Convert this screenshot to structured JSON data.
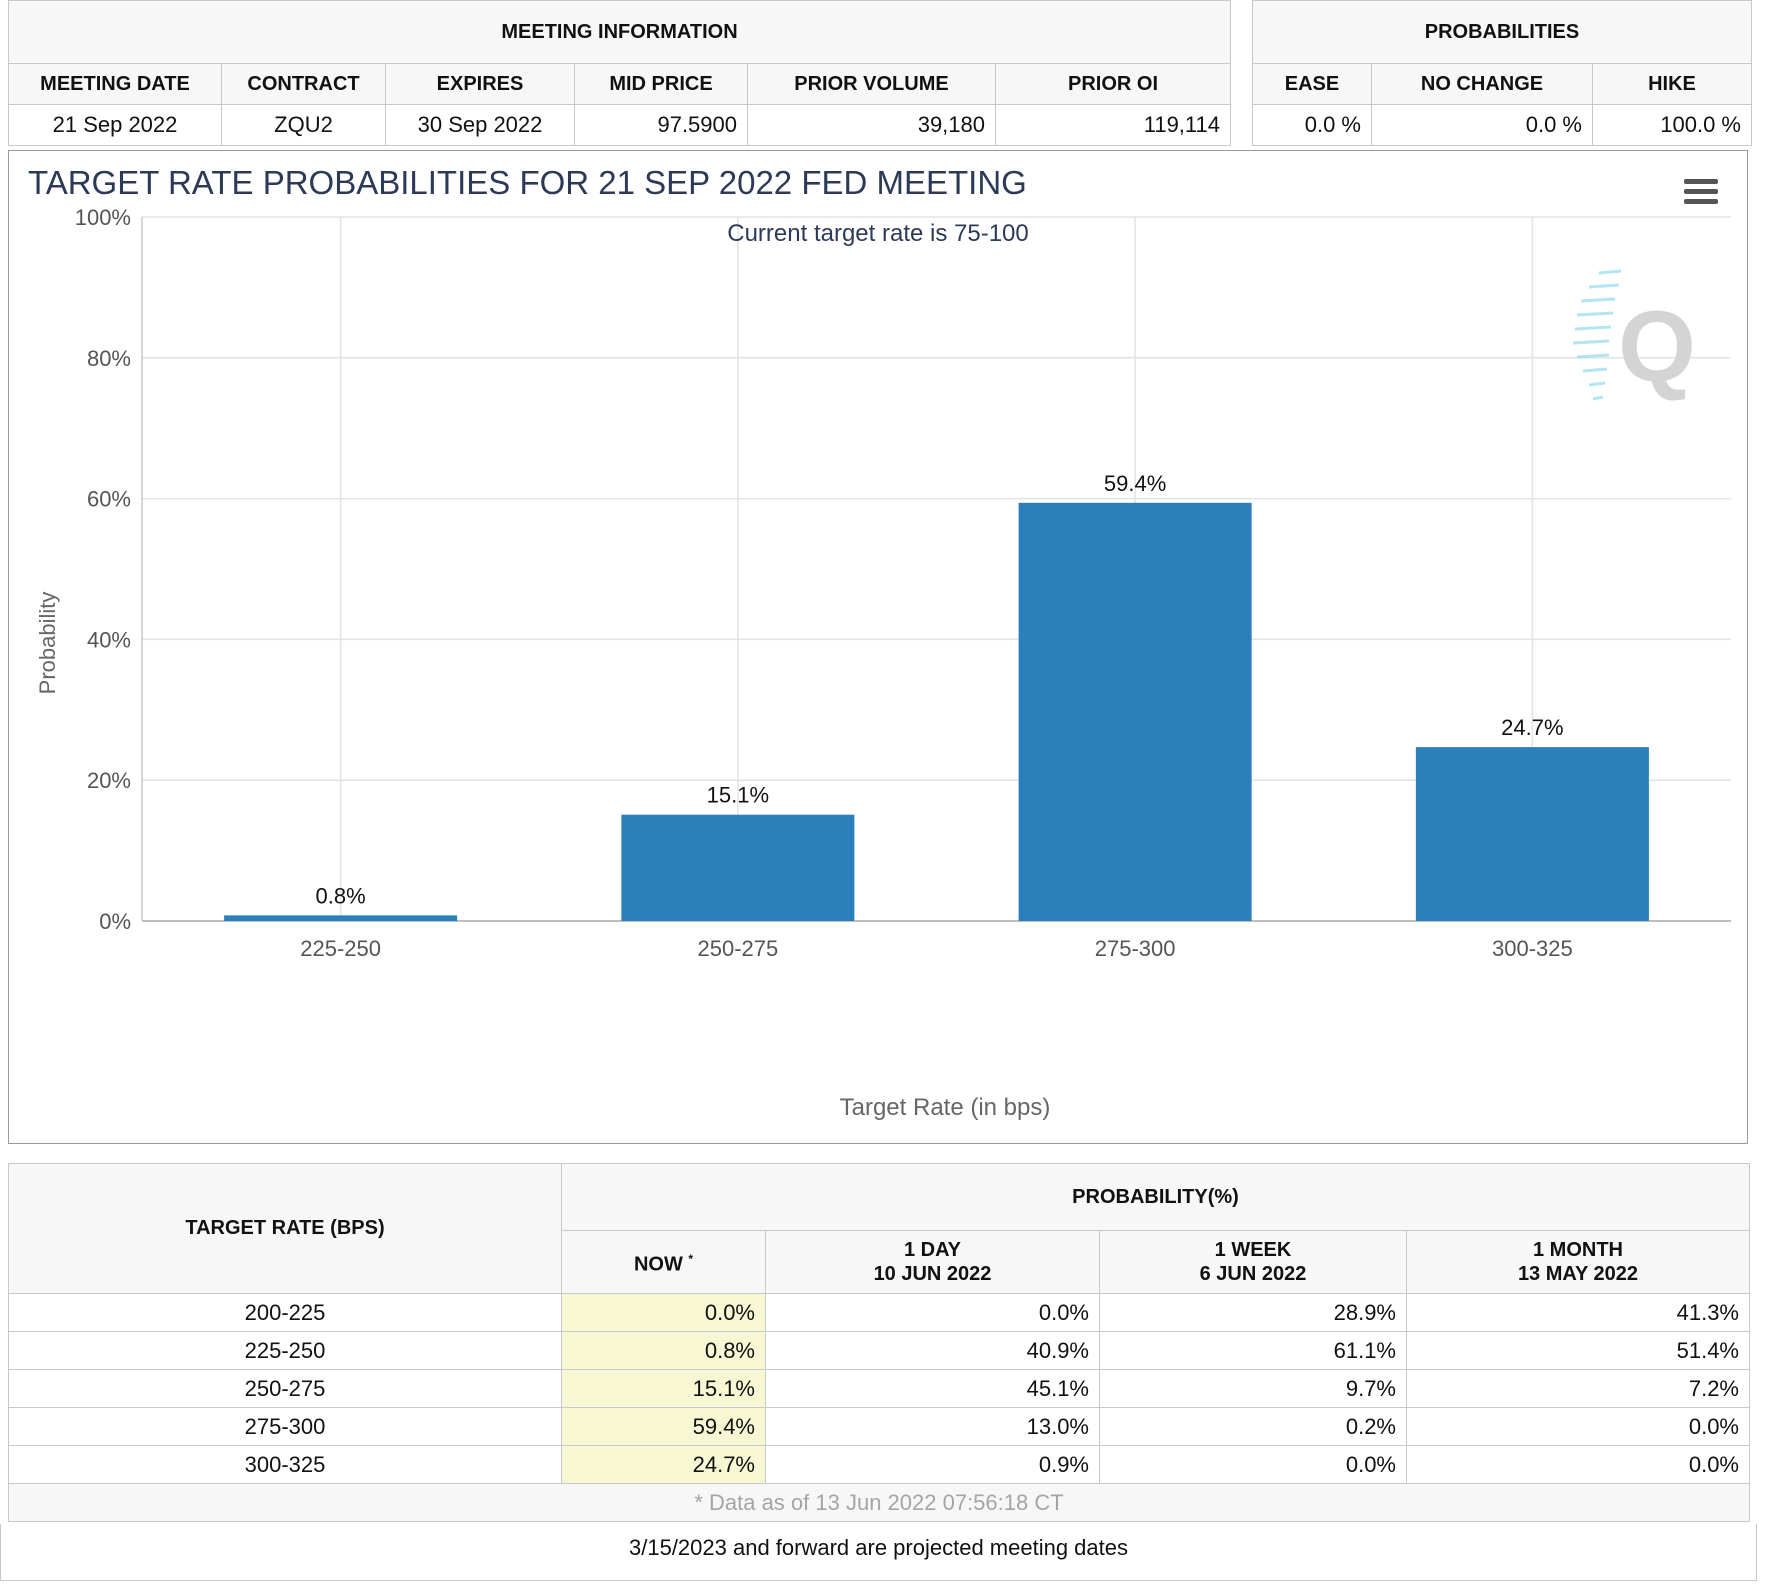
{
  "meeting_info": {
    "group_title": "MEETING INFORMATION",
    "headers": [
      "MEETING DATE",
      "CONTRACT",
      "EXPIRES",
      "MID PRICE",
      "PRIOR VOLUME",
      "PRIOR OI"
    ],
    "values": [
      "21 Sep 2022",
      "ZQU2",
      "30 Sep 2022",
      "97.5900",
      "39,180",
      "119,114"
    ]
  },
  "probabilities": {
    "group_title": "PROBABILITIES",
    "headers": [
      "EASE",
      "NO CHANGE",
      "HIKE"
    ],
    "values": [
      "0.0 %",
      "0.0 %",
      "100.0 %"
    ]
  },
  "chart_data": {
    "type": "bar",
    "title": "TARGET RATE PROBABILITIES FOR 21 SEP 2022 FED MEETING",
    "subtitle": "Current target rate is 75-100",
    "xlabel": "Target Rate (in bps)",
    "ylabel": "Probability",
    "categories": [
      "225-250",
      "250-275",
      "275-300",
      "300-325"
    ],
    "values": [
      0.8,
      15.1,
      59.4,
      24.7
    ],
    "data_labels": [
      "0.8%",
      "15.1%",
      "59.4%",
      "24.7%"
    ],
    "ylim": [
      0,
      100
    ],
    "yticks": [
      "0%",
      "20%",
      "40%",
      "60%",
      "80%",
      "100%"
    ],
    "bar_color": "#2b7fbb",
    "grid": true,
    "watermark": "Q",
    "menu_icon": "hamburger-menu-icon"
  },
  "rates_table": {
    "col1_header": "TARGET RATE (BPS)",
    "prob_header": "PROBABILITY(%)",
    "sub_headers": [
      {
        "line1": "NOW",
        "line2": "",
        "sup": "*"
      },
      {
        "line1": "1 DAY",
        "line2": "10 JUN 2022",
        "sup": ""
      },
      {
        "line1": "1 WEEK",
        "line2": "6 JUN 2022",
        "sup": ""
      },
      {
        "line1": "1 MONTH",
        "line2": "13 MAY 2022",
        "sup": ""
      }
    ],
    "rows": [
      {
        "rate": "200-225",
        "now": "0.0%",
        "day": "0.0%",
        "week": "28.9%",
        "month": "41.3%"
      },
      {
        "rate": "225-250",
        "now": "0.8%",
        "day": "40.9%",
        "week": "61.1%",
        "month": "51.4%"
      },
      {
        "rate": "250-275",
        "now": "15.1%",
        "day": "45.1%",
        "week": "9.7%",
        "month": "7.2%"
      },
      {
        "rate": "275-300",
        "now": "59.4%",
        "day": "13.0%",
        "week": "0.2%",
        "month": "0.0%"
      },
      {
        "rate": "300-325",
        "now": "24.7%",
        "day": "0.9%",
        "week": "0.0%",
        "month": "0.0%"
      }
    ],
    "note": "* Data as of 13 Jun 2022 07:56:18 CT"
  },
  "footer": "3/15/2023 and forward are projected meeting dates"
}
